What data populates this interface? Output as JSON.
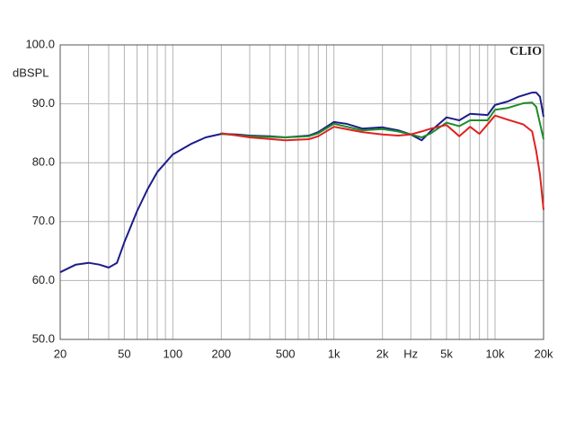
{
  "chart_data": {
    "type": "line",
    "corner_label": "CLIO",
    "y_label": "dBSPL",
    "log_x": true,
    "grid": true,
    "xlim": [
      20,
      20000
    ],
    "ylim": [
      50,
      100
    ],
    "xticks": [
      20,
      50,
      100,
      200,
      500,
      {
        "value": 1000,
        "label": "1k"
      },
      {
        "value": 2000,
        "label": "2k"
      },
      {
        "value": 3000,
        "label": "Hz"
      },
      {
        "value": 5000,
        "label": "5k"
      },
      {
        "value": 10000,
        "label": "10k"
      },
      {
        "value": 20000,
        "label": "20k"
      }
    ],
    "xminor": [
      30,
      40,
      60,
      70,
      80,
      90,
      300,
      400,
      600,
      700,
      800,
      900,
      4000,
      6000,
      7000,
      8000,
      9000
    ],
    "yticks": [
      {
        "value": 50,
        "label": "50.0"
      },
      {
        "value": 60,
        "label": "60.0"
      },
      {
        "value": 70,
        "label": "70.0"
      },
      {
        "value": 80,
        "label": "80.0"
      },
      {
        "value": 90,
        "label": "90.0"
      },
      {
        "value": 100,
        "label": "100.0"
      }
    ],
    "series": [
      {
        "color": "#1c1c8a",
        "x": [
          20,
          25,
          30,
          35,
          40,
          45,
          50,
          60,
          70,
          80,
          100,
          130,
          160,
          200,
          250,
          300,
          400,
          500,
          700,
          800,
          1000,
          1200,
          1500,
          2000,
          2500,
          3000,
          3500,
          4000,
          5000,
          6000,
          7000,
          9000,
          10000,
          12000,
          14000,
          17000,
          18000,
          19000,
          20000
        ],
        "values": [
          61.4,
          62.7,
          63.0,
          62.7,
          62.2,
          63.0,
          66.5,
          71.8,
          75.6,
          78.4,
          81.4,
          83.2,
          84.3,
          84.9,
          84.8,
          84.6,
          84.5,
          84.3,
          84.6,
          85.2,
          86.9,
          86.6,
          85.8,
          86.0,
          85.5,
          84.8,
          83.8,
          85.4,
          87.7,
          87.2,
          88.3,
          88.1,
          89.8,
          90.4,
          91.2,
          91.9,
          91.9,
          91.2,
          87.8
        ]
      },
      {
        "color": "#1e8c28",
        "x": [
          200,
          300,
          500,
          700,
          800,
          1000,
          1500,
          2000,
          2500,
          3000,
          3500,
          4000,
          5000,
          6000,
          7000,
          9000,
          10000,
          12000,
          15000,
          17000,
          18000,
          20000
        ],
        "values": [
          84.9,
          84.5,
          84.3,
          84.5,
          85.0,
          86.6,
          85.5,
          85.7,
          85.3,
          84.8,
          84.3,
          85.0,
          86.8,
          86.2,
          87.2,
          87.2,
          89.0,
          89.3,
          90.1,
          90.2,
          89.5,
          84.0
        ]
      },
      {
        "color": "#e02020",
        "x": [
          200,
          300,
          500,
          700,
          800,
          1000,
          1500,
          2000,
          2500,
          3000,
          3500,
          4000,
          5000,
          6000,
          7000,
          8000,
          10000,
          12000,
          15000,
          17000,
          18000,
          19000,
          20000
        ],
        "values": [
          85.0,
          84.3,
          83.8,
          84.0,
          84.5,
          86.1,
          85.2,
          84.8,
          84.6,
          84.8,
          85.3,
          85.8,
          86.4,
          84.5,
          86.1,
          84.9,
          88.0,
          87.3,
          86.5,
          85.3,
          82.0,
          78.0,
          72.0
        ]
      }
    ]
  }
}
